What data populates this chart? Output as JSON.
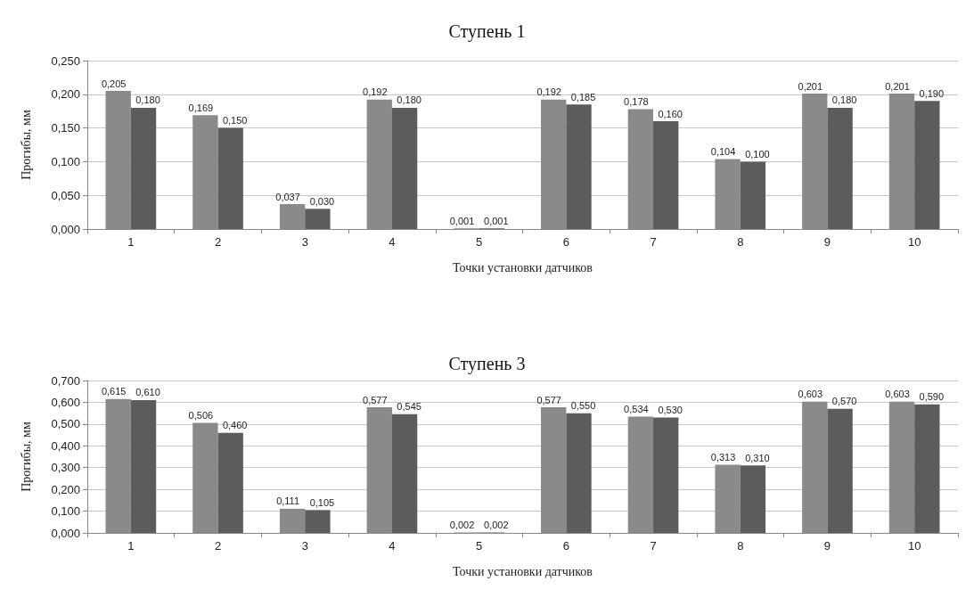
{
  "chart_data": [
    {
      "type": "bar",
      "title": "Ступень 1",
      "xlabel": "Точки установки датчиков",
      "ylabel": "Прогибы, мм",
      "categories": [
        "1",
        "2",
        "3",
        "4",
        "5",
        "6",
        "7",
        "8",
        "9",
        "10"
      ],
      "series": [
        {
          "color": "#8a8a8a",
          "values": [
            0.205,
            0.169,
            0.037,
            0.192,
            0.001,
            0.192,
            0.178,
            0.104,
            0.201,
            0.201
          ],
          "value_labels": [
            "0,205",
            "0,169",
            "0,037",
            "0,192",
            "0,001",
            "0,192",
            "0,178",
            "0,104",
            "0,201",
            "0,201"
          ]
        },
        {
          "color": "#5c5c5c",
          "values": [
            0.18,
            0.15,
            0.03,
            0.18,
            0.001,
            0.185,
            0.16,
            0.1,
            0.18,
            0.19
          ],
          "value_labels": [
            "0,180",
            "0,150",
            "0,030",
            "0,180",
            "0,001",
            "0,185",
            "0,160",
            "0,100",
            "0,180",
            "0,190"
          ]
        }
      ],
      "ylim": [
        0,
        0.25
      ],
      "yticks": [
        {
          "value": 0,
          "label": "0,000"
        },
        {
          "value": 0.05,
          "label": "0,050"
        },
        {
          "value": 0.1,
          "label": "0,100"
        },
        {
          "value": 0.15,
          "label": "0,150"
        },
        {
          "value": 0.2,
          "label": "0,200"
        },
        {
          "value": 0.25,
          "label": "0,250"
        }
      ],
      "grid": "y"
    },
    {
      "type": "bar",
      "title": "Ступень 3",
      "xlabel": "Точки установки датчиков",
      "ylabel": "Прогибы, мм",
      "categories": [
        "1",
        "2",
        "3",
        "4",
        "5",
        "6",
        "7",
        "8",
        "9",
        "10"
      ],
      "series": [
        {
          "color": "#8a8a8a",
          "values": [
            0.615,
            0.506,
            0.111,
            0.577,
            0.002,
            0.577,
            0.534,
            0.313,
            0.603,
            0.603
          ],
          "value_labels": [
            "0,615",
            "0,506",
            "0,111",
            "0,577",
            "0,002",
            "0,577",
            "0,534",
            "0,313",
            "0,603",
            "0,603"
          ]
        },
        {
          "color": "#5c5c5c",
          "values": [
            0.61,
            0.46,
            0.105,
            0.545,
            0.002,
            0.55,
            0.53,
            0.31,
            0.57,
            0.59
          ],
          "value_labels": [
            "0,610",
            "0,460",
            "0,105",
            "0,545",
            "0,002",
            "0,550",
            "0,530",
            "0,310",
            "0,570",
            "0,590"
          ]
        }
      ],
      "ylim": [
        0,
        0.7
      ],
      "yticks": [
        {
          "value": 0,
          "label": "0,000"
        },
        {
          "value": 0.1,
          "label": "0,100"
        },
        {
          "value": 0.2,
          "label": "0,200"
        },
        {
          "value": 0.3,
          "label": "0,300"
        },
        {
          "value": 0.4,
          "label": "0,400"
        },
        {
          "value": 0.5,
          "label": "0,500"
        },
        {
          "value": 0.6,
          "label": "0,600"
        },
        {
          "value": 0.7,
          "label": "0,700"
        }
      ],
      "grid": "y"
    }
  ]
}
